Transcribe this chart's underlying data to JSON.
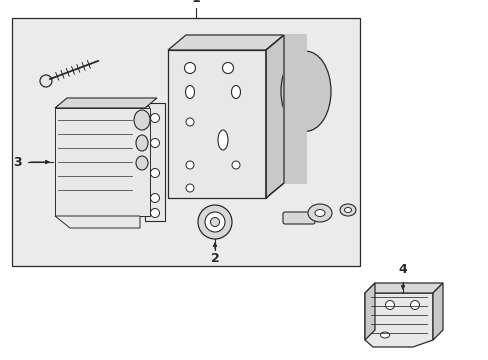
{
  "white": "#ffffff",
  "bg_fill": "#ebebeb",
  "line_color": "#2a2a2a",
  "fill_light": "#e8e8e8",
  "fill_mid": "#d8d8d8",
  "fill_dark": "#c8c8c8",
  "fig_width": 4.89,
  "fig_height": 3.6,
  "dpi": 100
}
